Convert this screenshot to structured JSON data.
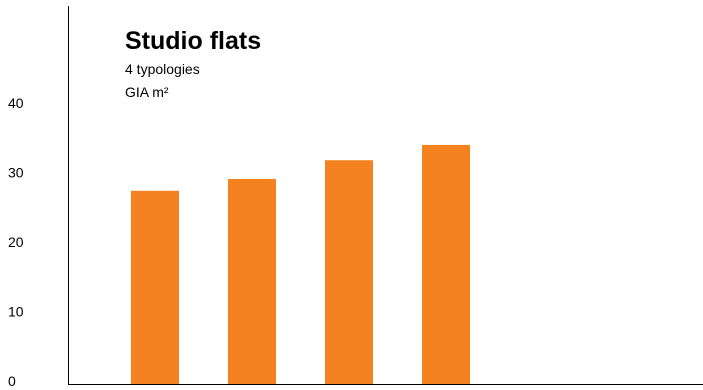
{
  "chart_data": {
    "type": "bar",
    "title": "Studio flats",
    "subtitle": "4 typologies",
    "unit_label": "GIA m²",
    "categories": [
      "",
      "",
      "",
      ""
    ],
    "values": [
      27.8,
      29.5,
      32.2,
      34.4
    ],
    "ylim": [
      0,
      48
    ],
    "yticks": [
      "0",
      "10",
      "20",
      "30",
      "40"
    ],
    "ytick_values": [
      0,
      10,
      20,
      30,
      40
    ],
    "xlabel": "",
    "ylabel": "",
    "grid": false,
    "legend": "none",
    "bar_color": "#F58220",
    "axis_color": "#000000"
  }
}
